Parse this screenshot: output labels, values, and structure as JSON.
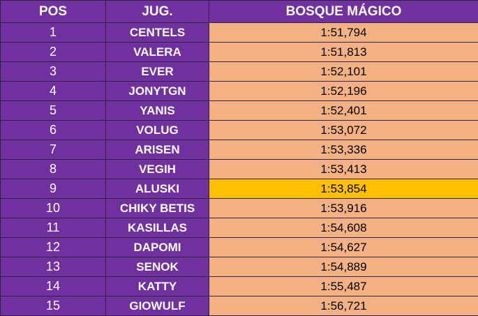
{
  "headers": {
    "pos": "POS",
    "player": "JUG.",
    "track": "BOSQUE MÁGICO"
  },
  "colors": {
    "header_bg": "#7030a0",
    "name_bg": "#7030a0",
    "time_bg": "#f4b183",
    "highlight_bg": "#ffc000",
    "text_light": "#ffffff",
    "text_dark": "#000000"
  },
  "highlighted_position": "9",
  "rows": [
    {
      "pos": "1",
      "player": "CENTELS",
      "time": "1:51,794"
    },
    {
      "pos": "2",
      "player": "VALERA",
      "time": "1:51,813"
    },
    {
      "pos": "3",
      "player": "EVER",
      "time": "1:52,101"
    },
    {
      "pos": "4",
      "player": "JONYTGN",
      "time": "1:52,196"
    },
    {
      "pos": "5",
      "player": "YANIS",
      "time": "1:52,401"
    },
    {
      "pos": "6",
      "player": "VOLUG",
      "time": "1:53,072"
    },
    {
      "pos": "7",
      "player": "ARISEN",
      "time": "1:53,336"
    },
    {
      "pos": "8",
      "player": "VEGIH",
      "time": "1:53,413"
    },
    {
      "pos": "9",
      "player": "ALUSKI",
      "time": "1:53,854"
    },
    {
      "pos": "10",
      "player": "CHIKY BETIS",
      "time": "1:53,916"
    },
    {
      "pos": "11",
      "player": "KASILLAS",
      "time": "1:54,608"
    },
    {
      "pos": "12",
      "player": "DAPOMI",
      "time": "1:54,627"
    },
    {
      "pos": "13",
      "player": "SENOK",
      "time": "1:54,889"
    },
    {
      "pos": "14",
      "player": "KATTY",
      "time": "1:55,487"
    },
    {
      "pos": "15",
      "player": "GIOWULF",
      "time": "1:56,721"
    }
  ]
}
